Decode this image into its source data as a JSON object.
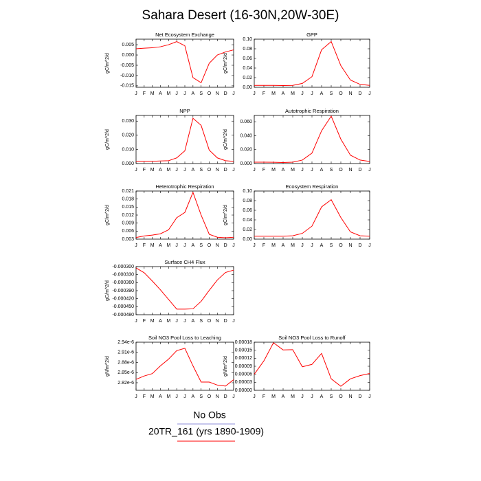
{
  "title": "Sahara Desert (16-30N,20W-30E)",
  "legend": [
    {
      "name": "No Obs",
      "color": "#8c8cd9"
    },
    {
      "name": "20TR_161 (yrs 1890-1909)",
      "color": "#ff0000"
    }
  ],
  "chart_data": [
    {
      "type": "line",
      "title": "Net Ecosystem Exchange",
      "ylabel": "gC/m^2/d",
      "categories": [
        "J",
        "F",
        "M",
        "A",
        "M",
        "J",
        "J",
        "A",
        "S",
        "O",
        "N",
        "D",
        "J"
      ],
      "values": [
        0.003,
        0.0033,
        0.0035,
        0.004,
        0.005,
        0.0065,
        0.0045,
        -0.011,
        -0.0135,
        -0.004,
        0.0,
        0.0015,
        0.0025
      ],
      "color": "#ff0000",
      "ylim": [
        -0.0157,
        0.0077
      ],
      "yticks": [
        {
          "value": 0.005,
          "label": "0.005"
        },
        {
          "value": 0,
          "label": "0.000"
        },
        {
          "value": -0.005,
          "label": "-0.005"
        },
        {
          "value": -0.01,
          "label": "-0.010"
        },
        {
          "value": -0.015,
          "label": "-0.015"
        }
      ]
    },
    {
      "type": "line",
      "title": "GPP",
      "ylabel": "gC/m^2/d",
      "categories": [
        "J",
        "F",
        "M",
        "A",
        "M",
        "J",
        "J",
        "A",
        "S",
        "O",
        "N",
        "D",
        "J"
      ],
      "values": [
        0.004,
        0.004,
        0.004,
        0.0035,
        0.004,
        0.008,
        0.022,
        0.078,
        0.095,
        0.045,
        0.015,
        0.006,
        0.004
      ],
      "color": "#ff0000",
      "ylim": [
        0,
        0.1
      ],
      "yticks": [
        {
          "value": 0,
          "label": "0.00"
        },
        {
          "value": 0.02,
          "label": "0.02"
        },
        {
          "value": 0.04,
          "label": "0.04"
        },
        {
          "value": 0.06,
          "label": "0.06"
        },
        {
          "value": 0.08,
          "label": "0.08"
        },
        {
          "value": 0.1,
          "label": "0.10"
        }
      ]
    },
    {
      "type": "line",
      "title": "NPP",
      "ylabel": "gC/m^2/d",
      "categories": [
        "J",
        "F",
        "M",
        "A",
        "M",
        "J",
        "J",
        "A",
        "S",
        "O",
        "N",
        "D",
        "J"
      ],
      "values": [
        0.0015,
        0.0015,
        0.0016,
        0.0018,
        0.002,
        0.004,
        0.009,
        0.032,
        0.027,
        0.0095,
        0.004,
        0.002,
        0.0015
      ],
      "color": "#ff0000",
      "ylim": [
        0,
        0.034
      ],
      "yticks": [
        {
          "value": 0,
          "label": "0.000"
        },
        {
          "value": 0.01,
          "label": "0.010"
        },
        {
          "value": 0.02,
          "label": "0.020"
        },
        {
          "value": 0.03,
          "label": "0.030"
        }
      ]
    },
    {
      "type": "line",
      "title": "Autotrophic Respiration",
      "ylabel": "gC/m^2/d",
      "categories": [
        "J",
        "F",
        "M",
        "A",
        "M",
        "J",
        "J",
        "A",
        "S",
        "O",
        "N",
        "D",
        "J"
      ],
      "values": [
        0.002,
        0.002,
        0.0018,
        0.0015,
        0.002,
        0.005,
        0.015,
        0.047,
        0.068,
        0.035,
        0.012,
        0.005,
        0.003
      ],
      "color": "#ff0000",
      "ylim": [
        0,
        0.069
      ],
      "yticks": [
        {
          "value": 0,
          "label": "0.000"
        },
        {
          "value": 0.02,
          "label": "0.020"
        },
        {
          "value": 0.04,
          "label": "0.040"
        },
        {
          "value": 0.06,
          "label": "0.060"
        }
      ]
    },
    {
      "type": "line",
      "title": "Heterotrophic Respiration",
      "ylabel": "gC/m^2/d",
      "categories": [
        "J",
        "F",
        "M",
        "A",
        "M",
        "J",
        "J",
        "A",
        "S",
        "O",
        "N",
        "D",
        "J"
      ],
      "values": [
        0.0036,
        0.0042,
        0.0045,
        0.005,
        0.0065,
        0.011,
        0.013,
        0.0205,
        0.012,
        0.0048,
        0.0037,
        0.0035,
        0.0037
      ],
      "color": "#ff0000",
      "ylim": [
        0.003,
        0.021
      ],
      "yticks": [
        0.003,
        0.006,
        0.009,
        0.012,
        0.015,
        0.018,
        0.021
      ]
    },
    {
      "type": "line",
      "title": "Ecosystem Respiration",
      "ylabel": "gC/m^2/d",
      "categories": [
        "J",
        "F",
        "M",
        "A",
        "M",
        "J",
        "J",
        "A",
        "S",
        "O",
        "N",
        "D",
        "J"
      ],
      "values": [
        0.006,
        0.006,
        0.006,
        0.006,
        0.007,
        0.012,
        0.027,
        0.067,
        0.082,
        0.045,
        0.015,
        0.007,
        0.006
      ],
      "color": "#ff0000",
      "ylim": [
        0,
        0.1
      ],
      "yticks": [
        {
          "value": 0,
          "label": "0.00"
        },
        {
          "value": 0.02,
          "label": "0.02"
        },
        {
          "value": 0.04,
          "label": "0.04"
        },
        {
          "value": 0.06,
          "label": "0.06"
        },
        {
          "value": 0.08,
          "label": "0.08"
        },
        {
          "value": 0.1,
          "label": "0.10"
        }
      ]
    },
    {
      "type": "line",
      "title": "Surface CH4 Flux",
      "ylabel": "gC/m^2/d",
      "categories": [
        "J",
        "F",
        "M",
        "A",
        "M",
        "J",
        "J",
        "A",
        "S",
        "O",
        "N",
        "D",
        "J"
      ],
      "values": [
        -0.000305,
        -0.000323,
        -0.000354,
        -0.000387,
        -0.000423,
        -0.000459,
        -0.000459,
        -0.000458,
        -0.00043,
        -0.000389,
        -0.00035,
        -0.000322,
        -0.000313
      ],
      "color": "#ff0000",
      "ylim": [
        -0.00048,
        -0.0003
      ],
      "yticks": [
        {
          "value": -0.0003,
          "label": "-0.000300"
        },
        {
          "value": -0.00033,
          "label": "-0.000330"
        },
        {
          "value": -0.00036,
          "label": "-0.000360"
        },
        {
          "value": -0.00039,
          "label": "-0.000390"
        },
        {
          "value": -0.00042,
          "label": "-0.000420"
        },
        {
          "value": -0.00045,
          "label": "-0.000450"
        },
        {
          "value": -0.00048,
          "label": "-0.000480"
        }
      ]
    },
    {
      "type": "line",
      "title": "Soil NO3 Pool Loss to Leaching",
      "ylabel": "gN/m^2/d",
      "categories": [
        "J",
        "F",
        "M",
        "A",
        "M",
        "J",
        "J",
        "A",
        "S",
        "O",
        "N",
        "D",
        "J"
      ],
      "values": [
        2.83e-06,
        2.84e-06,
        2.847e-06,
        2.87e-06,
        2.89e-06,
        2.915e-06,
        2.922e-06,
        2.87e-06,
        2.822e-06,
        2.822e-06,
        2.813e-06,
        2.81e-06,
        2.829e-06
      ],
      "color": "#ff0000",
      "ylim": [
        2.7976e-06,
        2.94e-06
      ],
      "yticks": [
        {
          "value": 2.82e-06,
          "label": "2.82e-6"
        },
        {
          "value": 2.85e-06,
          "label": "2.85e-6"
        },
        {
          "value": 2.88e-06,
          "label": "2.88e-6"
        },
        {
          "value": 2.91e-06,
          "label": "2.91e-6"
        },
        {
          "value": 2.94e-06,
          "label": "2.94e-6"
        }
      ]
    },
    {
      "type": "line",
      "title": "Soil NO3 Pool Loss to Runoff",
      "ylabel": "gN/m^2/d",
      "categories": [
        "J",
        "F",
        "M",
        "A",
        "M",
        "J",
        "J",
        "A",
        "S",
        "O",
        "N",
        "D",
        "J"
      ],
      "values": [
        6e-05,
        0.00011,
        0.000178,
        0.000151,
        0.000152,
        8.8e-05,
        9.7e-05,
        0.000138,
        4.3e-05,
        1.5e-05,
        4.3e-05,
        5.5e-05,
        6.3e-05
      ],
      "color": "#ff0000",
      "ylim": [
        0,
        0.00018
      ],
      "yticks": [
        {
          "value": 0,
          "label": "0.00000"
        },
        {
          "value": 3e-05,
          "label": "0.00003"
        },
        {
          "value": 6e-05,
          "label": "0.00006"
        },
        {
          "value": 9e-05,
          "label": "0.00009"
        },
        {
          "value": 0.00012,
          "label": "0.00012"
        },
        {
          "value": 0.00015,
          "label": "0.00015"
        },
        {
          "value": 0.00018,
          "label": "0.00018"
        }
      ]
    }
  ]
}
